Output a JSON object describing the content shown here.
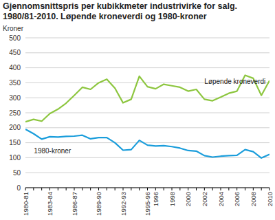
{
  "chart_data": {
    "type": "line",
    "title": "Gjennomsnittspris per kubikkmeter industrivirke for salg. 1980/81-2010. Løpende kroneverdi og 1980-kroner",
    "y_label": "Kroner",
    "categories": [
      "1980-81",
      null,
      null,
      "1983-84",
      null,
      null,
      "1986-87",
      null,
      null,
      "1989-90",
      null,
      null,
      "1992-93",
      null,
      null,
      "1995-96",
      "1996",
      null,
      "1998",
      null,
      "2000",
      null,
      "2002",
      null,
      "2004",
      null,
      "2006",
      null,
      "2008",
      null,
      "2010"
    ],
    "series": [
      {
        "name": "Løpende kroneverdi",
        "color": "#8dc63f",
        "values": [
          220,
          228,
          222,
          247,
          262,
          282,
          308,
          335,
          328,
          350,
          362,
          332,
          283,
          295,
          372,
          337,
          330,
          345,
          340,
          335,
          322,
          328,
          295,
          290,
          302,
          315,
          322,
          375,
          365,
          308,
          357
        ]
      },
      {
        "name": "1980-kroner",
        "color": "#1a9ddb",
        "values": [
          195,
          180,
          162,
          170,
          169,
          171,
          172,
          175,
          163,
          167,
          167,
          150,
          125,
          127,
          158,
          142,
          139,
          140,
          137,
          132,
          124,
          122,
          107,
          102,
          105,
          107,
          108,
          127,
          120,
          99,
          111
        ]
      }
    ],
    "ylim": [
      0,
      500
    ],
    "yticks": [
      0,
      50,
      100,
      150,
      200,
      250,
      300,
      350,
      400,
      450,
      500
    ],
    "grid": true
  }
}
